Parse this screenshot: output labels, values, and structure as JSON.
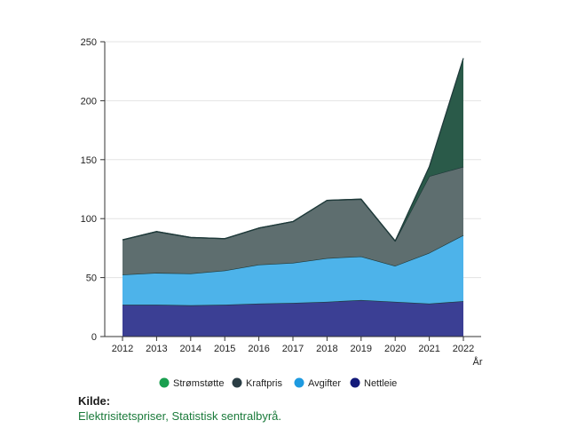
{
  "chart_data": {
    "type": "area",
    "stacked": true,
    "title": "",
    "xlabel": "År",
    "ylabel": "",
    "ylim": [
      0,
      250
    ],
    "yticks": [
      "0",
      "50",
      "100",
      "150",
      "200",
      "250"
    ],
    "categories": [
      "2012",
      "2013",
      "2014",
      "2015",
      "2016",
      "2017",
      "2018",
      "2019",
      "2020",
      "2021",
      "2022"
    ],
    "grid": true,
    "legend_position": "bottom",
    "series": [
      {
        "name": "Nettleie",
        "color": "#3b3f94",
        "values": [
          27,
          27,
          26.5,
          27,
          28,
          28.5,
          29.5,
          31,
          29.5,
          28,
          30
        ]
      },
      {
        "name": "Avgifter",
        "color": "#4db3ea",
        "values": [
          25.5,
          27,
          27,
          29,
          33,
          34,
          37,
          37,
          30.5,
          43,
          56
        ]
      },
      {
        "name": "Kraftpris",
        "color": "#5e6e6f",
        "values": [
          29.5,
          35,
          30.5,
          27,
          31,
          35,
          49,
          48.5,
          21,
          65,
          58
        ]
      },
      {
        "name": "Strømstøtte",
        "color": "#2a5a49",
        "values": [
          0,
          0,
          0,
          0,
          0,
          0,
          0,
          0,
          0,
          8,
          92
        ]
      }
    ],
    "legend_order": [
      "Strømstøtte",
      "Kraftpris",
      "Avgifter",
      "Nettleie"
    ],
    "legend_colors": {
      "Strømstøtte": "#1a9f4f",
      "Kraftpris": "#2a3d44",
      "Avgifter": "#1e9ae0",
      "Nettleie": "#131a7a"
    }
  },
  "source": {
    "title": "Kilde:",
    "text": "Elektrisitetspriser, Statistisk sentralbyrå."
  }
}
